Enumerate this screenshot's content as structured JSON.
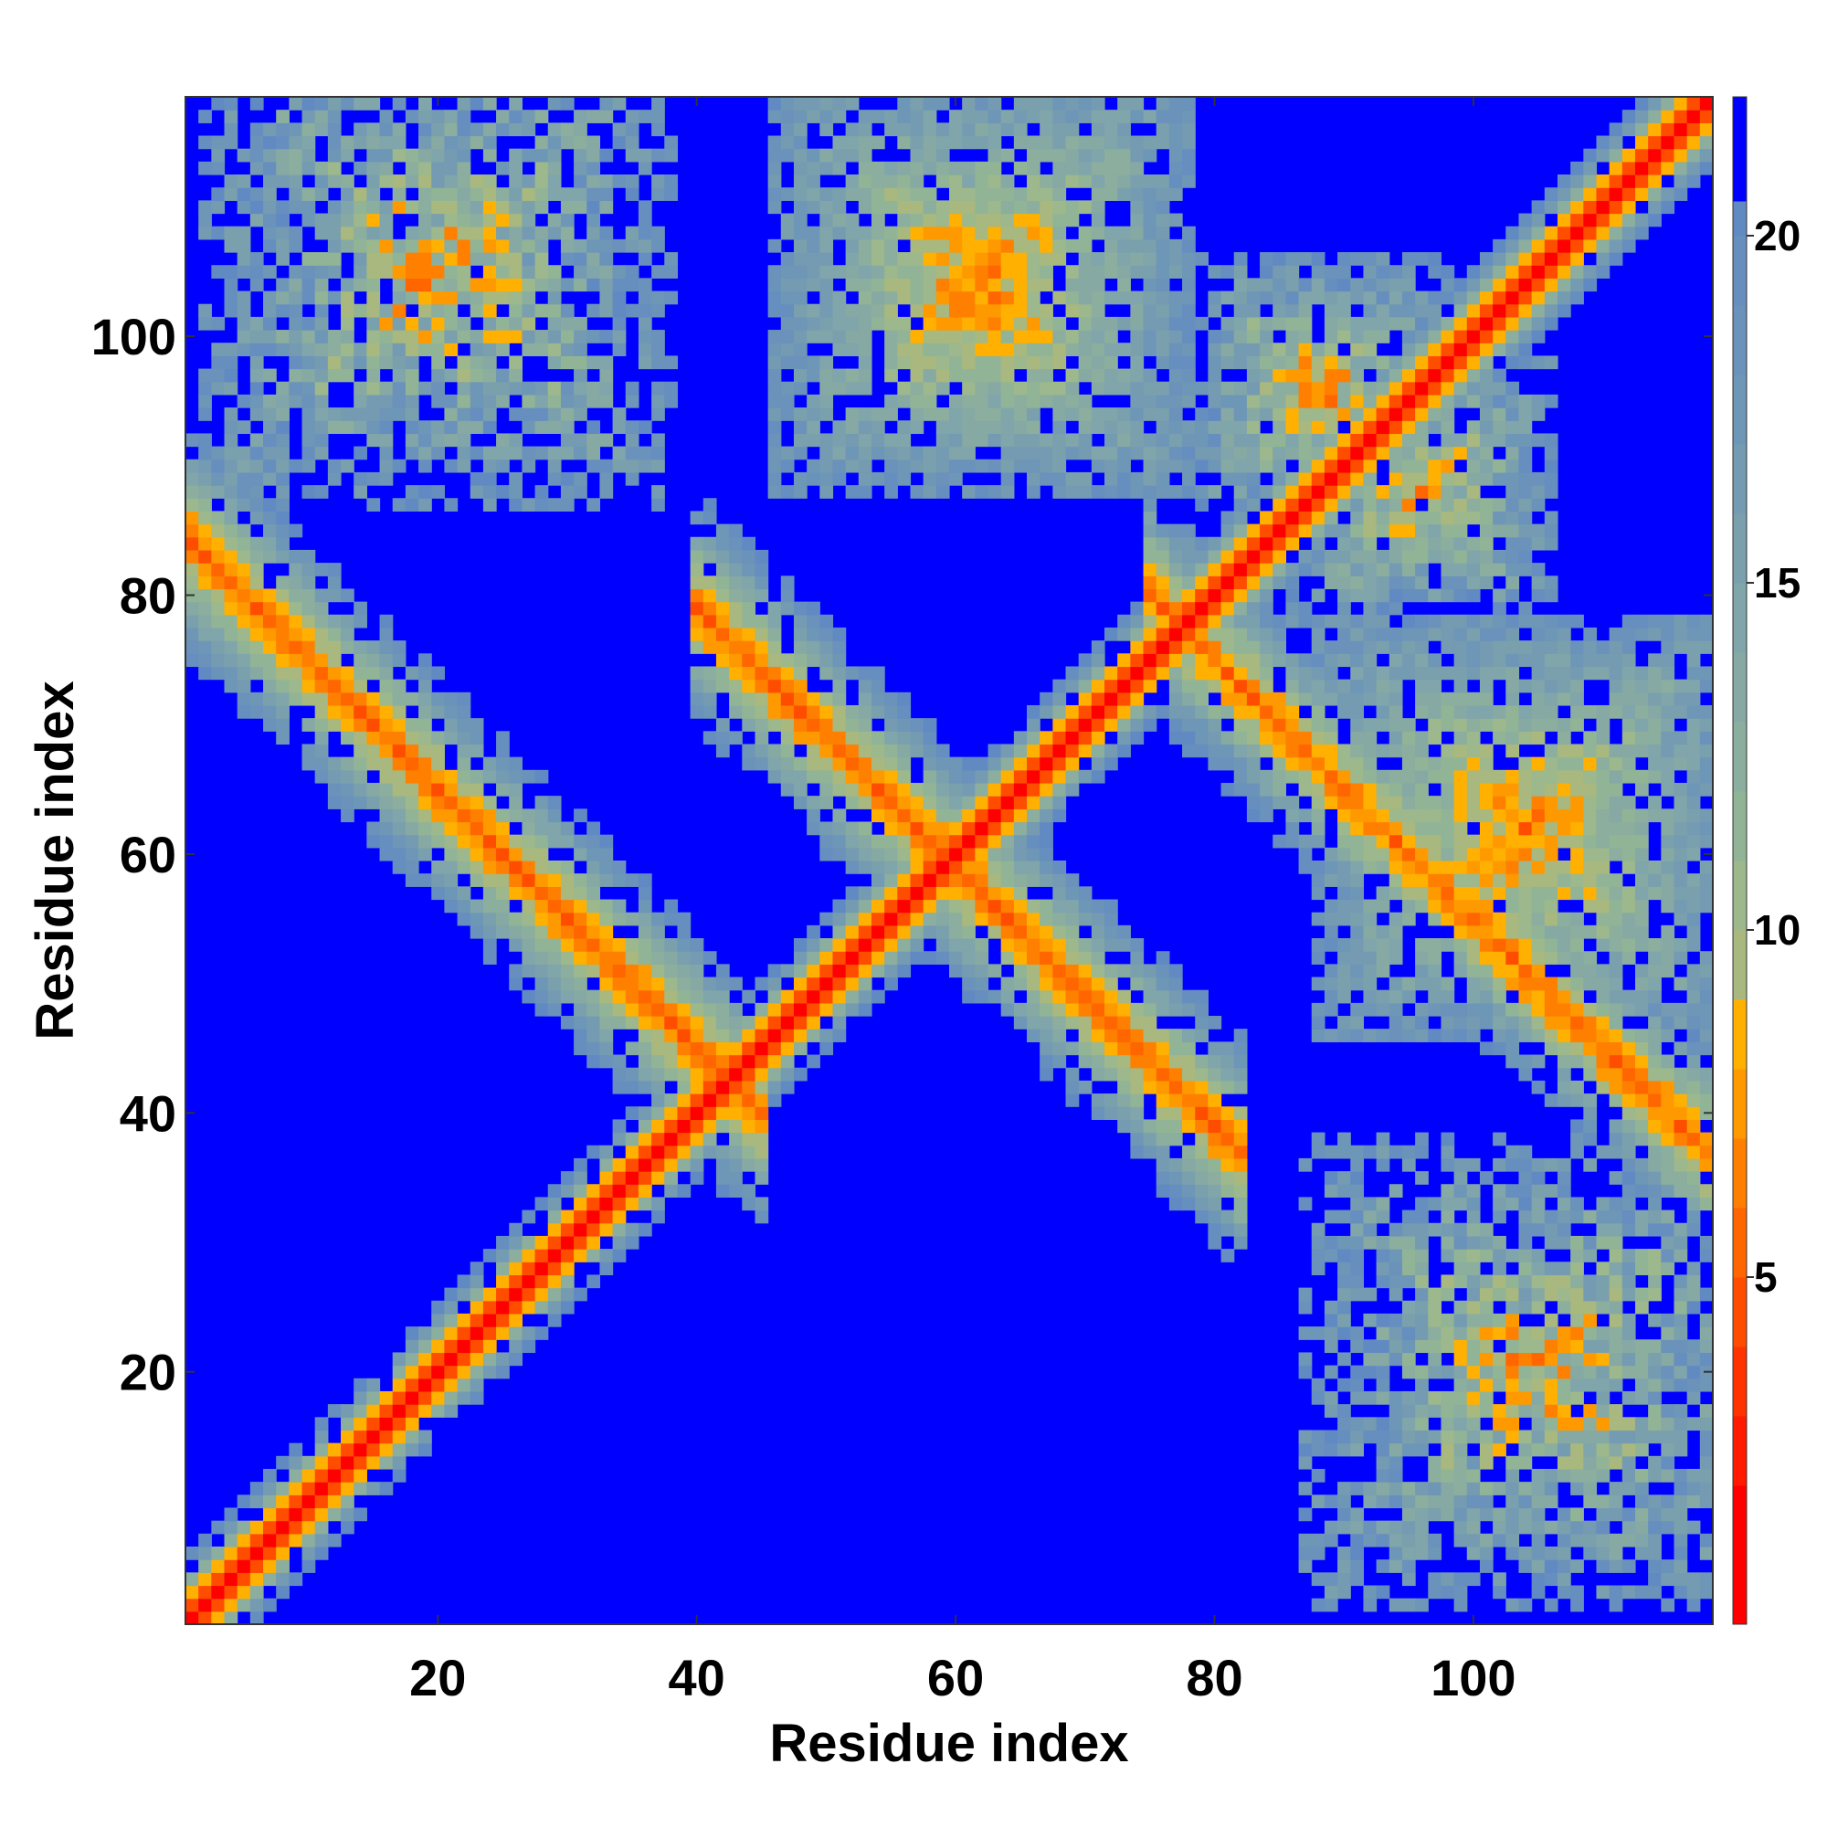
{
  "chart_data": {
    "type": "heatmap",
    "title": "",
    "xlabel": "Residue index",
    "ylabel": "Residue index",
    "n_residues": 118,
    "xlim": [
      0.5,
      118.5
    ],
    "ylim": [
      0.5,
      118.5
    ],
    "x_ticks": [
      20,
      40,
      60,
      80,
      100
    ],
    "y_ticks": [
      20,
      40,
      60,
      80,
      100
    ],
    "x_tick_labels": [
      "20",
      "40",
      "60",
      "80",
      "100"
    ],
    "y_tick_labels": [
      "20",
      "40",
      "60",
      "80",
      "100"
    ],
    "value_range": [
      0,
      22
    ],
    "cutoff": 20.5,
    "colorbar": {
      "ticks": [
        5,
        10,
        15,
        20
      ],
      "tick_labels": [
        "5",
        "10",
        "15",
        "20"
      ],
      "bands": [
        {
          "min": 0,
          "max": 2,
          "color": "#ff0000"
        },
        {
          "min": 2,
          "max": 3,
          "color": "#ff1a00"
        },
        {
          "min": 3,
          "max": 4,
          "color": "#ff3300"
        },
        {
          "min": 4,
          "max": 5,
          "color": "#ff4d00"
        },
        {
          "min": 5,
          "max": 6,
          "color": "#ff6600"
        },
        {
          "min": 6,
          "max": 7,
          "color": "#ff8000"
        },
        {
          "min": 7,
          "max": 8,
          "color": "#ff9900"
        },
        {
          "min": 8,
          "max": 9,
          "color": "#ffb000"
        },
        {
          "min": 9,
          "max": 10,
          "color": "#a8b87e"
        },
        {
          "min": 10,
          "max": 11,
          "color": "#9cb88c"
        },
        {
          "min": 11,
          "max": 12,
          "color": "#92b496"
        },
        {
          "min": 12,
          "max": 13,
          "color": "#8bae9e"
        },
        {
          "min": 13,
          "max": 14,
          "color": "#86a9a4"
        },
        {
          "min": 14,
          "max": 15,
          "color": "#80a5aa"
        },
        {
          "min": 15,
          "max": 16,
          "color": "#7aa0ae"
        },
        {
          "min": 16,
          "max": 17,
          "color": "#749bb2"
        },
        {
          "min": 17,
          "max": 18,
          "color": "#6e96b6"
        },
        {
          "min": 18,
          "max": 19,
          "color": "#6a92ba"
        },
        {
          "min": 19,
          "max": 20,
          "color": "#668ebe"
        },
        {
          "min": 20,
          "max": 20.5,
          "color": "#628ac2"
        },
        {
          "min": 20.5,
          "max": 22,
          "color": "#0000ff"
        }
      ]
    },
    "contact_regions": [
      {
        "name": "diagonal",
        "description": "self / sequence-neighbour distances along i = j"
      },
      {
        "type": "antiparallel",
        "sum": 85,
        "from": [
          3,
          82
        ],
        "to": [
          42,
          43
        ],
        "strength": 1.0
      },
      {
        "type": "antiparallel",
        "sum": 119,
        "from": [
          43,
          76
        ],
        "to": [
          79,
          40
        ],
        "strength": 1.0
      },
      {
        "type": "antiparallel",
        "sum": 155,
        "from": [
          78,
          77
        ],
        "to": [
          117,
          38
        ],
        "strength": 0.9
      },
      {
        "type": "offdiagonal",
        "center": [
          62,
          104
        ],
        "half_width": 16,
        "strength": 0.8
      },
      {
        "type": "offdiagonal",
        "center": [
          20,
          105
        ],
        "half_width": 18,
        "strength": 0.3
      },
      {
        "type": "offdiagonal",
        "center": [
          96,
          88
        ],
        "half_width": 10,
        "strength": 0.5
      }
    ]
  },
  "colors": {
    "background": "#0000ff",
    "frame": "#333333"
  }
}
